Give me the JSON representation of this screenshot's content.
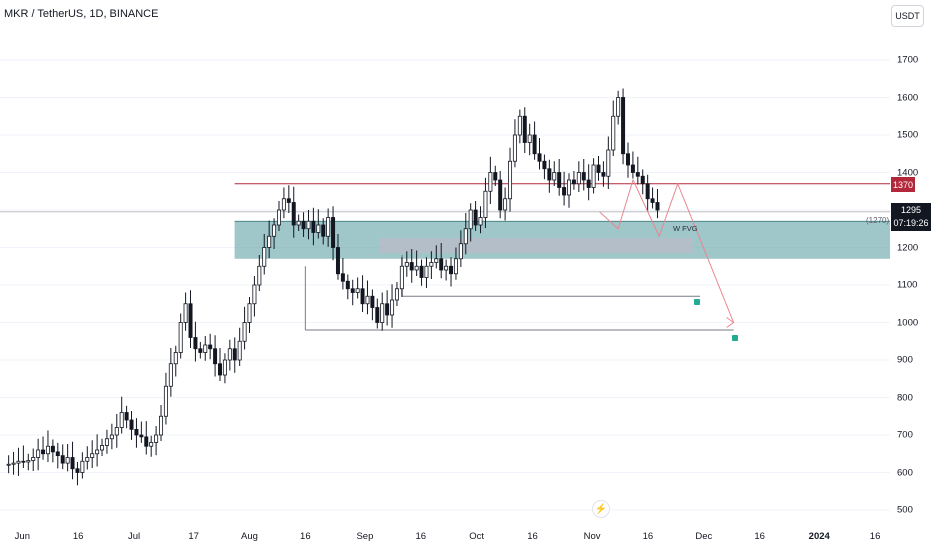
{
  "header": {
    "symbol_title": "MKR / TetherUS, 1D, BINANCE",
    "currency": "USDT"
  },
  "badges": {
    "level_price": "1370",
    "current_price": "1295",
    "countdown": "07:19:26",
    "reference": "(1270)"
  },
  "annotations": {
    "fvg_label": "W FVG"
  },
  "colors": {
    "candle": "#131722",
    "level_line": "#b2283a",
    "zone_fill": "#7fb3b5",
    "projection": "#e8868f",
    "check": "#22ab94"
  },
  "icons": {
    "watermark": "bolt-icon",
    "check": "check-icon"
  },
  "chart_data": {
    "type": "candlestick",
    "title": "MKR / TetherUS, 1D, BINANCE",
    "y_ticks": [
      500,
      600,
      700,
      800,
      900,
      1000,
      1100,
      1200,
      1300,
      1400,
      1500,
      1600,
      1700
    ],
    "ylim": [
      470,
      1740
    ],
    "x_ticks": [
      "Jun",
      "16",
      "Jul",
      "17",
      "Aug",
      "16",
      "Sep",
      "16",
      "Oct",
      "16",
      "Nov",
      "16",
      "Dec",
      "16",
      "2024",
      "16"
    ],
    "xlim": [
      "2023-05-26",
      "2024-01-20"
    ],
    "closes": [
      620,
      622,
      625,
      630,
      628,
      632,
      640,
      660,
      650,
      670,
      655,
      645,
      625,
      640,
      610,
      600,
      630,
      640,
      650,
      660,
      672,
      690,
      700,
      720,
      760,
      740,
      715,
      700,
      695,
      670,
      680,
      700,
      750,
      830,
      890,
      920,
      1000,
      1050,
      960,
      930,
      920,
      940,
      930,
      890,
      860,
      900,
      930,
      900,
      950,
      1000,
      1050,
      1100,
      1150,
      1200,
      1230,
      1260,
      1300,
      1330,
      1320,
      1260,
      1270,
      1250,
      1270,
      1240,
      1260,
      1230,
      1280,
      1200,
      1130,
      1110,
      1090,
      1080,
      1090,
      1050,
      1070,
      1040,
      1000,
      1050,
      1020,
      1060,
      1090,
      1150,
      1160,
      1140,
      1150,
      1120,
      1150,
      1160,
      1170,
      1140,
      1150,
      1130,
      1170,
      1210,
      1250,
      1300,
      1260,
      1280,
      1350,
      1400,
      1380,
      1300,
      1330,
      1430,
      1500,
      1550,
      1480,
      1500,
      1450,
      1430,
      1410,
      1380,
      1400,
      1360,
      1340,
      1380,
      1370,
      1400,
      1380,
      1360,
      1420,
      1400,
      1390,
      1460,
      1550,
      1600,
      1450,
      1420,
      1400,
      1390,
      1370,
      1330,
      1320,
      1300
    ],
    "candles_note": "",
    "levels": [
      {
        "name": "",
        "price": 1370
      },
      {
        "name": "",
        "price": 1295
      },
      {
        "name": "",
        "price": 1270
      }
    ],
    "zones": [
      {
        "name": "W FVG",
        "from": 1170,
        "to": 1270
      }
    ],
    "projection": [
      1295,
      1250,
      1380,
      1230,
      1370,
      1000
    ],
    "targets": [
      1070,
      980
    ]
  }
}
